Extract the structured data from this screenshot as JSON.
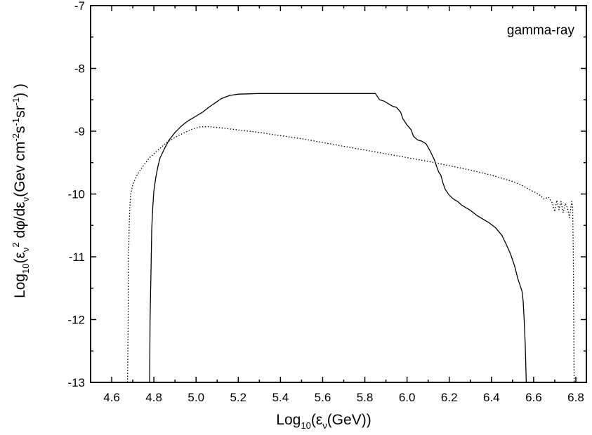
{
  "chart_data": {
    "type": "line",
    "title": "",
    "annotation": "gamma-ray",
    "xlabel": {
      "prefix": "Log",
      "sub": "10",
      "open": "(",
      "eps": "ε",
      "eps_sub": "ν",
      "rest": "(GeV))"
    },
    "ylabel": {
      "prefix": "Log",
      "sub": "10",
      "p1": "(ε",
      "eps_sub": "ν",
      "sup2": "2",
      "p2": " dφ/dε",
      "eps_sub2": "ν",
      "p3": "(Gev cm",
      "sup_cm": "-2",
      "p4": "s",
      "sup_s": "-1",
      "p5": "sr",
      "sup_sr": "-1",
      "p6": ") )"
    },
    "xlim": [
      4.5,
      6.85
    ],
    "ylim": [
      -13,
      -7
    ],
    "xticks": [
      "4.6",
      "4.8",
      "5.0",
      "5.2",
      "5.4",
      "5.6",
      "5.8",
      "6.0",
      "6.2",
      "6.4",
      "6.6",
      "6.8"
    ],
    "yticks": [
      "-7",
      "-8",
      "-9",
      "-10",
      "-11",
      "-12",
      "-13"
    ],
    "grid": false,
    "series": [
      {
        "style": "solid",
        "color": "#000000",
        "points": [
          [
            4.78,
            -13.0
          ],
          [
            4.782,
            -12.0
          ],
          [
            4.786,
            -11.3
          ],
          [
            4.79,
            -10.55
          ],
          [
            4.795,
            -10.2
          ],
          [
            4.8,
            -9.95
          ],
          [
            4.81,
            -9.72
          ],
          [
            4.82,
            -9.55
          ],
          [
            4.83,
            -9.42
          ],
          [
            4.85,
            -9.28
          ],
          [
            4.87,
            -9.15
          ],
          [
            4.9,
            -9.02
          ],
          [
            4.93,
            -8.92
          ],
          [
            4.96,
            -8.84
          ],
          [
            5.0,
            -8.76
          ],
          [
            5.03,
            -8.7
          ],
          [
            5.06,
            -8.62
          ],
          [
            5.09,
            -8.55
          ],
          [
            5.12,
            -8.48
          ],
          [
            5.16,
            -8.43
          ],
          [
            5.2,
            -8.41
          ],
          [
            5.3,
            -8.4
          ],
          [
            5.4,
            -8.4
          ],
          [
            5.6,
            -8.4
          ],
          [
            5.8,
            -8.4
          ],
          [
            5.85,
            -8.4
          ],
          [
            5.87,
            -8.5
          ],
          [
            5.89,
            -8.52
          ],
          [
            5.91,
            -8.56
          ],
          [
            5.93,
            -8.6
          ],
          [
            5.95,
            -8.62
          ],
          [
            5.97,
            -8.7
          ],
          [
            5.98,
            -8.8
          ],
          [
            5.99,
            -8.85
          ],
          [
            6.0,
            -8.9
          ],
          [
            6.02,
            -8.98
          ],
          [
            6.03,
            -9.08
          ],
          [
            6.05,
            -9.14
          ],
          [
            6.07,
            -9.16
          ],
          [
            6.09,
            -9.2
          ],
          [
            6.11,
            -9.32
          ],
          [
            6.13,
            -9.46
          ],
          [
            6.14,
            -9.56
          ],
          [
            6.15,
            -9.65
          ],
          [
            6.16,
            -9.7
          ],
          [
            6.17,
            -9.82
          ],
          [
            6.18,
            -9.92
          ],
          [
            6.19,
            -9.97
          ],
          [
            6.2,
            -10.02
          ],
          [
            6.22,
            -10.08
          ],
          [
            6.24,
            -10.12
          ],
          [
            6.26,
            -10.18
          ],
          [
            6.28,
            -10.22
          ],
          [
            6.3,
            -10.26
          ],
          [
            6.33,
            -10.34
          ],
          [
            6.36,
            -10.4
          ],
          [
            6.39,
            -10.46
          ],
          [
            6.42,
            -10.54
          ],
          [
            6.45,
            -10.66
          ],
          [
            6.47,
            -10.8
          ],
          [
            6.49,
            -10.95
          ],
          [
            6.51,
            -11.15
          ],
          [
            6.525,
            -11.35
          ],
          [
            6.535,
            -11.45
          ],
          [
            6.545,
            -11.55
          ],
          [
            6.55,
            -11.7
          ],
          [
            6.555,
            -12.0
          ],
          [
            6.56,
            -12.4
          ],
          [
            6.563,
            -12.75
          ],
          [
            6.565,
            -13.0
          ]
        ]
      },
      {
        "style": "dotted",
        "color": "#000000",
        "points": [
          [
            4.675,
            -13.0
          ],
          [
            4.678,
            -12.0
          ],
          [
            4.68,
            -11.0
          ],
          [
            4.683,
            -10.5
          ],
          [
            4.686,
            -10.2
          ],
          [
            4.69,
            -10.0
          ],
          [
            4.7,
            -9.85
          ],
          [
            4.72,
            -9.7
          ],
          [
            4.75,
            -9.55
          ],
          [
            4.78,
            -9.42
          ],
          [
            4.82,
            -9.3
          ],
          [
            4.86,
            -9.18
          ],
          [
            4.9,
            -9.1
          ],
          [
            4.94,
            -9.03
          ],
          [
            4.98,
            -8.97
          ],
          [
            5.02,
            -8.93
          ],
          [
            5.06,
            -8.93
          ],
          [
            5.1,
            -8.94
          ],
          [
            5.2,
            -8.98
          ],
          [
            5.3,
            -9.02
          ],
          [
            5.4,
            -9.07
          ],
          [
            5.5,
            -9.12
          ],
          [
            5.6,
            -9.18
          ],
          [
            5.7,
            -9.24
          ],
          [
            5.8,
            -9.3
          ],
          [
            5.9,
            -9.36
          ],
          [
            6.0,
            -9.42
          ],
          [
            6.1,
            -9.48
          ],
          [
            6.2,
            -9.55
          ],
          [
            6.3,
            -9.62
          ],
          [
            6.4,
            -9.7
          ],
          [
            6.5,
            -9.8
          ],
          [
            6.55,
            -9.87
          ],
          [
            6.58,
            -9.93
          ],
          [
            6.61,
            -9.98
          ],
          [
            6.63,
            -10.02
          ],
          [
            6.65,
            -10.08
          ],
          [
            6.67,
            -10.05
          ],
          [
            6.69,
            -10.15
          ],
          [
            6.7,
            -10.28
          ],
          [
            6.71,
            -10.1
          ],
          [
            6.72,
            -10.25
          ],
          [
            6.73,
            -10.12
          ],
          [
            6.74,
            -10.3
          ],
          [
            6.75,
            -10.15
          ],
          [
            6.76,
            -10.22
          ],
          [
            6.77,
            -10.38
          ],
          [
            6.78,
            -10.12
          ],
          [
            6.785,
            -10.2
          ],
          [
            6.788,
            -11.0
          ],
          [
            6.79,
            -12.0
          ],
          [
            6.792,
            -13.0
          ]
        ]
      }
    ]
  }
}
